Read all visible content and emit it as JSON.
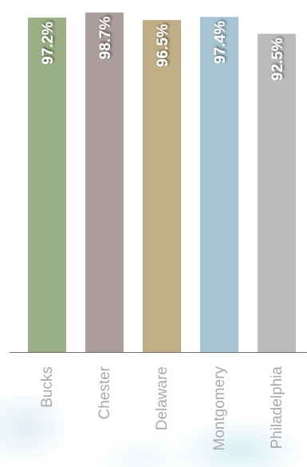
{
  "chart_data": {
    "type": "bar",
    "categories": [
      "Bucks",
      "Chester",
      "Delaware",
      "Montgomery",
      "Philadelphia"
    ],
    "values": [
      97.2,
      98.7,
      96.5,
      97.4,
      92.5
    ],
    "data_labels": [
      "97.2%",
      "98.7%",
      "96.5%",
      "97.4%",
      "92.5%"
    ],
    "colors": [
      "#9aaf85",
      "#ab9c9d",
      "#bfae86",
      "#a7c4d3",
      "#bbbbbb"
    ],
    "title": "",
    "xlabel": "",
    "ylabel": "",
    "ylim": [
      0,
      100
    ],
    "grid": false,
    "legend": "none"
  }
}
